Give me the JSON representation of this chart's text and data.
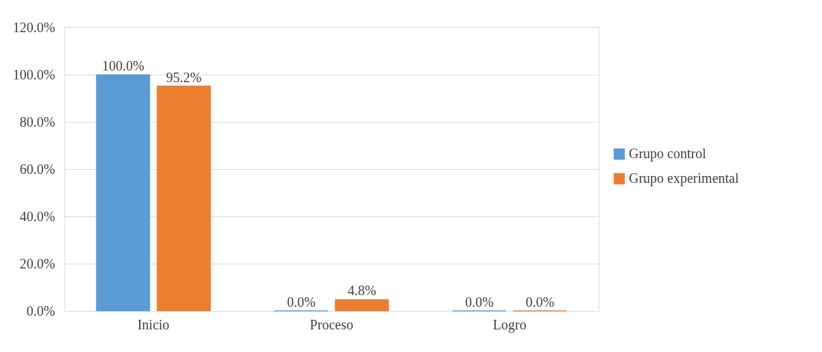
{
  "chart_data": {
    "type": "bar",
    "categories": [
      "Inicio",
      "Proceso",
      "Logro"
    ],
    "series": [
      {
        "name": "Grupo control",
        "color": "#5b9bd5",
        "values": [
          100.0,
          0.0,
          0.0
        ],
        "value_labels": [
          "100.0%",
          "0.0%",
          "0.0%"
        ]
      },
      {
        "name": "Grupo experimental",
        "color": "#ed7d31",
        "values": [
          95.2,
          4.8,
          0.0
        ],
        "value_labels": [
          "95.2%",
          "4.8%",
          "0.0%"
        ]
      }
    ],
    "ylim": [
      0,
      120
    ],
    "yticks": [
      {
        "value": 0,
        "label": "0.0%"
      },
      {
        "value": 20,
        "label": "20.0%"
      },
      {
        "value": 40,
        "label": "40.0%"
      },
      {
        "value": 60,
        "label": "60.0%"
      },
      {
        "value": 80,
        "label": "80.0%"
      },
      {
        "value": 100,
        "label": "100.0%"
      },
      {
        "value": 120,
        "label": "120.0%"
      }
    ],
    "grid": "y",
    "legend": "right"
  }
}
